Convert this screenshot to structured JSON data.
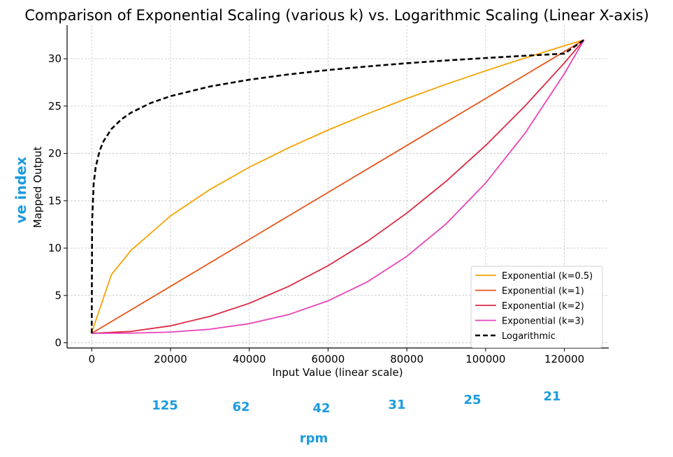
{
  "chart_data": {
    "type": "line",
    "title": "Comparison of Exponential Scaling (various k) vs. Logarithmic Scaling (Linear X-axis)",
    "xlabel": "Input Value (linear scale)",
    "ylabel": "Mapped Output",
    "xlim": [
      -6250,
      131250
    ],
    "ylim": [
      -0.55,
      33.55
    ],
    "xticks": [
      0,
      20000,
      40000,
      60000,
      80000,
      100000,
      120000
    ],
    "yticks": [
      0,
      5,
      10,
      15,
      20,
      25,
      30
    ],
    "grid": true,
    "legend_position": "lower-right",
    "series": [
      {
        "name": "Exponential (k=0.5)",
        "color": "#f5a300",
        "style": "solid",
        "x": [
          1,
          5000,
          10000,
          20000,
          30000,
          40000,
          50000,
          60000,
          70000,
          80000,
          90000,
          100000,
          110000,
          120000,
          125000
        ],
        "y": [
          1.09,
          7.2,
          9.77,
          13.4,
          16.19,
          18.54,
          20.6,
          22.47,
          24.19,
          25.8,
          27.31,
          28.73,
          30.08,
          31.37,
          32.0
        ]
      },
      {
        "name": "Exponential (k=1)",
        "color": "#e8551a",
        "style": "solid",
        "x": [
          1,
          20000,
          40000,
          60000,
          80000,
          100000,
          120000,
          125000
        ],
        "y": [
          1.0,
          5.96,
          10.92,
          15.88,
          20.84,
          25.8,
          30.76,
          32.0
        ]
      },
      {
        "name": "Exponential (k=2)",
        "color": "#dc2842",
        "style": "solid",
        "x": [
          1,
          10000,
          20000,
          30000,
          40000,
          50000,
          60000,
          70000,
          80000,
          90000,
          100000,
          110000,
          120000,
          125000
        ],
        "y": [
          1.0,
          1.2,
          1.79,
          2.79,
          4.17,
          5.96,
          8.14,
          10.72,
          13.7,
          17.07,
          20.84,
          25.01,
          29.57,
          32.0
        ]
      },
      {
        "name": "Exponential (k=3)",
        "color": "#e843b8",
        "style": "solid",
        "x": [
          1,
          10000,
          20000,
          30000,
          40000,
          50000,
          60000,
          70000,
          80000,
          90000,
          100000,
          110000,
          120000,
          125000
        ],
        "y": [
          1.0,
          1.02,
          1.13,
          1.43,
          2.02,
          2.98,
          4.43,
          6.44,
          9.13,
          12.57,
          16.87,
          22.13,
          28.43,
          32.0
        ]
      },
      {
        "name": "Logarithmic",
        "color": "#000000",
        "style": "dashed",
        "x": [
          1,
          100,
          500,
          1000,
          2000,
          3000,
          5000,
          7500,
          10000,
          15000,
          20000,
          30000,
          40000,
          50000,
          60000,
          70000,
          80000,
          90000,
          100000,
          110000,
          120000,
          125000
        ],
        "y": [
          1.0,
          12.77,
          16.8,
          18.53,
          20.27,
          21.29,
          22.58,
          23.59,
          24.31,
          25.33,
          26.05,
          27.07,
          27.79,
          28.35,
          28.81,
          29.19,
          29.53,
          29.82,
          30.08,
          30.32,
          30.54,
          32.0
        ]
      }
    ],
    "annotations": {
      "side_label": "ve index",
      "bottom_label": "rpm",
      "bottom_values": [
        "125",
        "62",
        "42",
        "31",
        "25",
        "21"
      ],
      "color": "#1a9ade"
    }
  }
}
